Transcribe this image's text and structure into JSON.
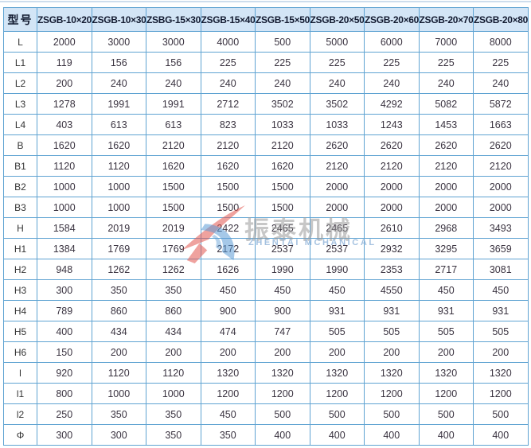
{
  "watermark": {
    "cn": "振泰机械",
    "en": "ZHENTAI MCHANICAL",
    "logo_red": "#e2564e",
    "logo_blue": "#5b9bd5"
  },
  "colors": {
    "table_border": "#5fa3d2",
    "header_bg": "#d3e5f6",
    "header_text": "#121a30",
    "cell_text": "#3a3340",
    "top_rule": "#cddded"
  },
  "table": {
    "header": [
      "型号",
      "ZSGB-10×20",
      "ZSGB-10×30",
      "ZSBG-15×30",
      "ZSGB-15×40",
      "ZSGB-15×50",
      "ZSGB-20×50",
      "ZSGB-20×60",
      "ZSGB-20×70",
      "ZSGB-20×80"
    ],
    "rows": [
      {
        "label": "L",
        "values": [
          "2000",
          "3000",
          "3000",
          "4000",
          "500",
          "5000",
          "6000",
          "7000",
          "8000"
        ]
      },
      {
        "label": "L1",
        "values": [
          "119",
          "156",
          "156",
          "225",
          "225",
          "225",
          "225",
          "225",
          "225"
        ]
      },
      {
        "label": "L2",
        "values": [
          "200",
          "240",
          "240",
          "240",
          "240",
          "240",
          "240",
          "240",
          "240"
        ]
      },
      {
        "label": "L3",
        "values": [
          "1278",
          "1991",
          "1991",
          "2712",
          "3502",
          "3502",
          "4292",
          "5082",
          "5872"
        ]
      },
      {
        "label": "L4",
        "values": [
          "403",
          "613",
          "613",
          "823",
          "1033",
          "1033",
          "1243",
          "1453",
          "1663"
        ]
      },
      {
        "label": "B",
        "values": [
          "1620",
          "1620",
          "2120",
          "2120",
          "2120",
          "2620",
          "2620",
          "2620",
          "2620"
        ]
      },
      {
        "label": "B1",
        "values": [
          "1120",
          "1120",
          "1620",
          "1620",
          "1620",
          "2120",
          "2120",
          "2120",
          "2120"
        ]
      },
      {
        "label": "B2",
        "values": [
          "1000",
          "1000",
          "1500",
          "1500",
          "1500",
          "2000",
          "2000",
          "2000",
          "2000"
        ]
      },
      {
        "label": "B3",
        "values": [
          "1000",
          "1000",
          "1500",
          "1500",
          "1500",
          "2000",
          "2000",
          "2000",
          "2000"
        ]
      },
      {
        "label": "H",
        "values": [
          "1584",
          "2019",
          "2019",
          "2422",
          "2465",
          "2465",
          "2610",
          "2968",
          "3493"
        ]
      },
      {
        "label": "H1",
        "values": [
          "1384",
          "1769",
          "1769",
          "2172",
          "2537",
          "2537",
          "2932",
          "3295",
          "3659"
        ]
      },
      {
        "label": "H2",
        "values": [
          "948",
          "1262",
          "1262",
          "1626",
          "1990",
          "1990",
          "2353",
          "2717",
          "3081"
        ]
      },
      {
        "label": "H3",
        "values": [
          "300",
          "350",
          "350",
          "450",
          "450",
          "450",
          "4550",
          "450",
          "450"
        ]
      },
      {
        "label": "H4",
        "values": [
          "789",
          "860",
          "860",
          "900",
          "900",
          "931",
          "931",
          "931",
          "931"
        ]
      },
      {
        "label": "H5",
        "values": [
          "400",
          "434",
          "434",
          "474",
          "747",
          "505",
          "505",
          "505",
          "505"
        ]
      },
      {
        "label": "H6",
        "values": [
          "150",
          "200",
          "200",
          "200",
          "200",
          "200",
          "200",
          "200",
          "200"
        ]
      },
      {
        "label": "l",
        "values": [
          "920",
          "1120",
          "1120",
          "1320",
          "1320",
          "1320",
          "1320",
          "1320",
          "1320"
        ]
      },
      {
        "label": "l1",
        "values": [
          "800",
          "1000",
          "1000",
          "1200",
          "1200",
          "1200",
          "1200",
          "1200",
          "1200"
        ]
      },
      {
        "label": "l2",
        "values": [
          "250",
          "350",
          "350",
          "450",
          "500",
          "500",
          "500",
          "500",
          "500"
        ]
      },
      {
        "label": "Φ",
        "values": [
          "300",
          "300",
          "350",
          "350",
          "400",
          "400",
          "400",
          "400",
          "400"
        ]
      }
    ]
  }
}
